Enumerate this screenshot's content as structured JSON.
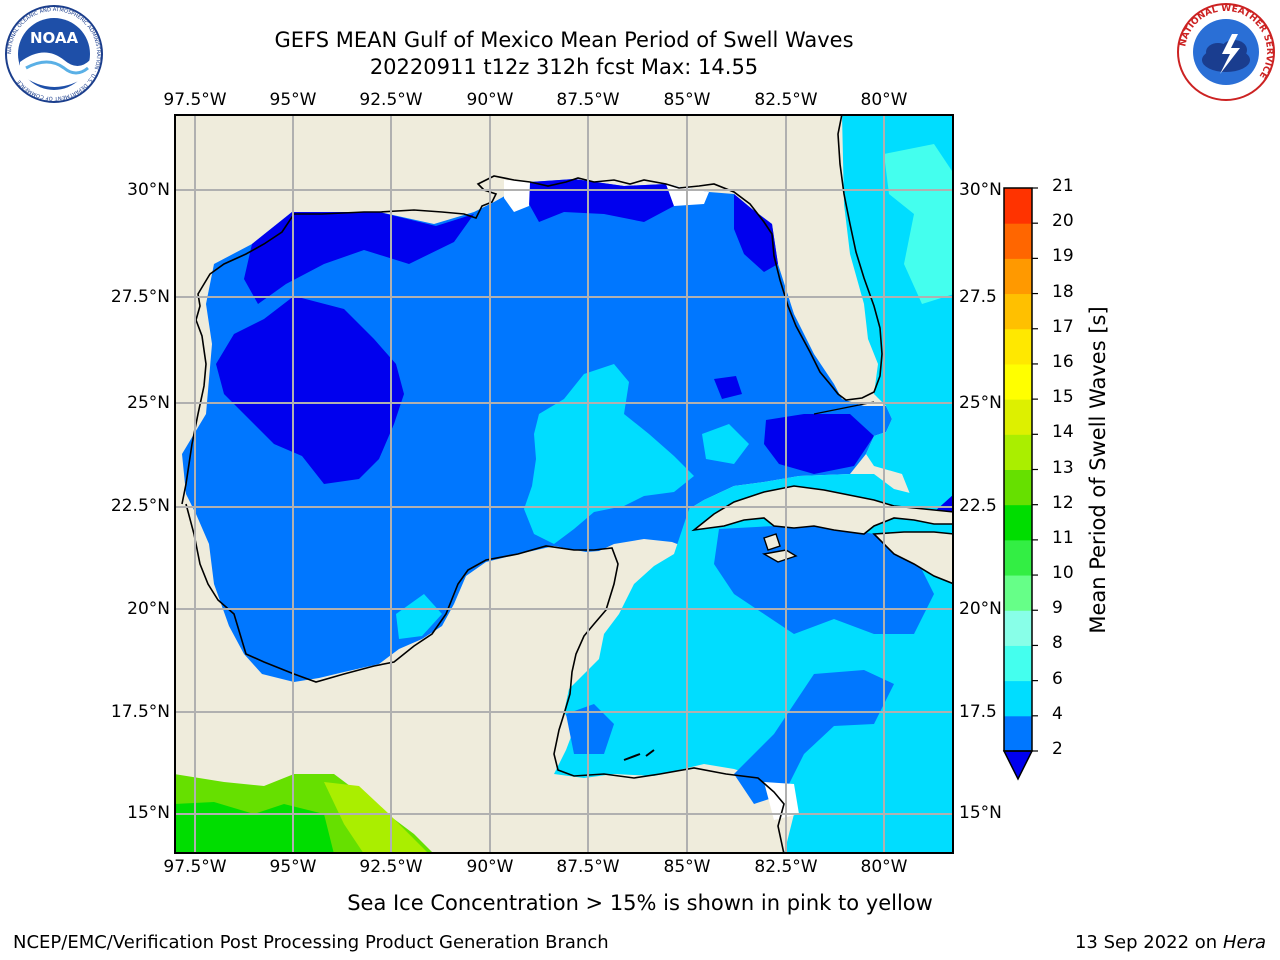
{
  "header": {
    "title_line1": "GEFS MEAN Gulf of Mexico Mean Period of Swell Waves",
    "title_line2": "20220911 t12z 312h fcst   Max: 14.55"
  },
  "logos": {
    "left": {
      "name": "noaa-logo",
      "text": "NOAA",
      "ring_text": "NATIONAL OCEANIC AND ATMOSPHERIC ADMINISTRATION · U.S. DEPARTMENT OF COMMERCE"
    },
    "right": {
      "name": "nws-logo",
      "ring_text": "NATIONAL WEATHER SERVICE"
    }
  },
  "map": {
    "lon_labels": [
      "97.5°W",
      "95°W",
      "92.5°W",
      "90°W",
      "87.5°W",
      "85°W",
      "82.5°W",
      "80°W"
    ],
    "lat_labels_left": [
      "30°N",
      "27.5°N",
      "25°N",
      "22.5°N",
      "20°N",
      "17.5°N",
      "15°N"
    ],
    "lat_labels_right": [
      "30°N",
      "27.5",
      "25°N",
      "22.5",
      "20°N",
      "17.5",
      "15°N"
    ],
    "land_color": "#efecdc",
    "grid_color": "#b0b0b0"
  },
  "colorbar": {
    "label": "Mean Period of Swell Waves [s]",
    "ticks": [
      "2",
      "4",
      "6",
      "8",
      "9",
      "10",
      "11",
      "12",
      "13",
      "14",
      "15",
      "16",
      "17",
      "18",
      "19",
      "20",
      "21"
    ],
    "colors": [
      "#0077ff",
      "#00ddff",
      "#44ffee",
      "#88ffe8",
      "#66ff88",
      "#33ee44",
      "#00dd00",
      "#66e000",
      "#aaee00",
      "#ddf000",
      "#ffff00",
      "#ffe800",
      "#ffc000",
      "#ff9900",
      "#ff6600",
      "#ff3300"
    ],
    "extend_color": "#0000ee"
  },
  "footer": {
    "note": "Sea Ice Concentration > 15% is shown in pink to yellow",
    "left": "NCEP/EMC/Verification Post Processing Product Generation Branch",
    "date": "13 Sep 2022 on",
    "system": "Hera"
  }
}
